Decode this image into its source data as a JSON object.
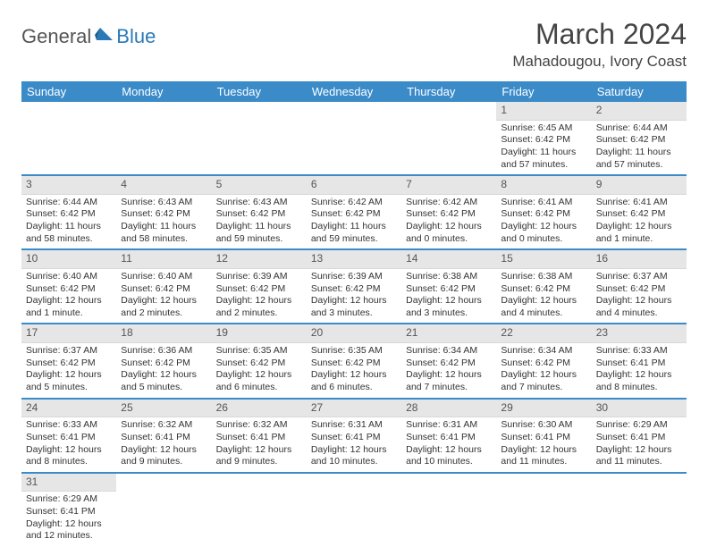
{
  "logo": {
    "general": "General",
    "blue": "Blue"
  },
  "title": "March 2024",
  "location": "Mahadougou, Ivory Coast",
  "colors": {
    "headerBg": "#3b8bc9",
    "dayNumBg": "#e6e6e6"
  },
  "weekdays": [
    "Sunday",
    "Monday",
    "Tuesday",
    "Wednesday",
    "Thursday",
    "Friday",
    "Saturday"
  ],
  "weeks": [
    [
      null,
      null,
      null,
      null,
      null,
      {
        "n": "1",
        "sr": "Sunrise: 6:45 AM",
        "ss": "Sunset: 6:42 PM",
        "dl": "Daylight: 11 hours and 57 minutes."
      },
      {
        "n": "2",
        "sr": "Sunrise: 6:44 AM",
        "ss": "Sunset: 6:42 PM",
        "dl": "Daylight: 11 hours and 57 minutes."
      }
    ],
    [
      {
        "n": "3",
        "sr": "Sunrise: 6:44 AM",
        "ss": "Sunset: 6:42 PM",
        "dl": "Daylight: 11 hours and 58 minutes."
      },
      {
        "n": "4",
        "sr": "Sunrise: 6:43 AM",
        "ss": "Sunset: 6:42 PM",
        "dl": "Daylight: 11 hours and 58 minutes."
      },
      {
        "n": "5",
        "sr": "Sunrise: 6:43 AM",
        "ss": "Sunset: 6:42 PM",
        "dl": "Daylight: 11 hours and 59 minutes."
      },
      {
        "n": "6",
        "sr": "Sunrise: 6:42 AM",
        "ss": "Sunset: 6:42 PM",
        "dl": "Daylight: 11 hours and 59 minutes."
      },
      {
        "n": "7",
        "sr": "Sunrise: 6:42 AM",
        "ss": "Sunset: 6:42 PM",
        "dl": "Daylight: 12 hours and 0 minutes."
      },
      {
        "n": "8",
        "sr": "Sunrise: 6:41 AM",
        "ss": "Sunset: 6:42 PM",
        "dl": "Daylight: 12 hours and 0 minutes."
      },
      {
        "n": "9",
        "sr": "Sunrise: 6:41 AM",
        "ss": "Sunset: 6:42 PM",
        "dl": "Daylight: 12 hours and 1 minute."
      }
    ],
    [
      {
        "n": "10",
        "sr": "Sunrise: 6:40 AM",
        "ss": "Sunset: 6:42 PM",
        "dl": "Daylight: 12 hours and 1 minute."
      },
      {
        "n": "11",
        "sr": "Sunrise: 6:40 AM",
        "ss": "Sunset: 6:42 PM",
        "dl": "Daylight: 12 hours and 2 minutes."
      },
      {
        "n": "12",
        "sr": "Sunrise: 6:39 AM",
        "ss": "Sunset: 6:42 PM",
        "dl": "Daylight: 12 hours and 2 minutes."
      },
      {
        "n": "13",
        "sr": "Sunrise: 6:39 AM",
        "ss": "Sunset: 6:42 PM",
        "dl": "Daylight: 12 hours and 3 minutes."
      },
      {
        "n": "14",
        "sr": "Sunrise: 6:38 AM",
        "ss": "Sunset: 6:42 PM",
        "dl": "Daylight: 12 hours and 3 minutes."
      },
      {
        "n": "15",
        "sr": "Sunrise: 6:38 AM",
        "ss": "Sunset: 6:42 PM",
        "dl": "Daylight: 12 hours and 4 minutes."
      },
      {
        "n": "16",
        "sr": "Sunrise: 6:37 AM",
        "ss": "Sunset: 6:42 PM",
        "dl": "Daylight: 12 hours and 4 minutes."
      }
    ],
    [
      {
        "n": "17",
        "sr": "Sunrise: 6:37 AM",
        "ss": "Sunset: 6:42 PM",
        "dl": "Daylight: 12 hours and 5 minutes."
      },
      {
        "n": "18",
        "sr": "Sunrise: 6:36 AM",
        "ss": "Sunset: 6:42 PM",
        "dl": "Daylight: 12 hours and 5 minutes."
      },
      {
        "n": "19",
        "sr": "Sunrise: 6:35 AM",
        "ss": "Sunset: 6:42 PM",
        "dl": "Daylight: 12 hours and 6 minutes."
      },
      {
        "n": "20",
        "sr": "Sunrise: 6:35 AM",
        "ss": "Sunset: 6:42 PM",
        "dl": "Daylight: 12 hours and 6 minutes."
      },
      {
        "n": "21",
        "sr": "Sunrise: 6:34 AM",
        "ss": "Sunset: 6:42 PM",
        "dl": "Daylight: 12 hours and 7 minutes."
      },
      {
        "n": "22",
        "sr": "Sunrise: 6:34 AM",
        "ss": "Sunset: 6:42 PM",
        "dl": "Daylight: 12 hours and 7 minutes."
      },
      {
        "n": "23",
        "sr": "Sunrise: 6:33 AM",
        "ss": "Sunset: 6:41 PM",
        "dl": "Daylight: 12 hours and 8 minutes."
      }
    ],
    [
      {
        "n": "24",
        "sr": "Sunrise: 6:33 AM",
        "ss": "Sunset: 6:41 PM",
        "dl": "Daylight: 12 hours and 8 minutes."
      },
      {
        "n": "25",
        "sr": "Sunrise: 6:32 AM",
        "ss": "Sunset: 6:41 PM",
        "dl": "Daylight: 12 hours and 9 minutes."
      },
      {
        "n": "26",
        "sr": "Sunrise: 6:32 AM",
        "ss": "Sunset: 6:41 PM",
        "dl": "Daylight: 12 hours and 9 minutes."
      },
      {
        "n": "27",
        "sr": "Sunrise: 6:31 AM",
        "ss": "Sunset: 6:41 PM",
        "dl": "Daylight: 12 hours and 10 minutes."
      },
      {
        "n": "28",
        "sr": "Sunrise: 6:31 AM",
        "ss": "Sunset: 6:41 PM",
        "dl": "Daylight: 12 hours and 10 minutes."
      },
      {
        "n": "29",
        "sr": "Sunrise: 6:30 AM",
        "ss": "Sunset: 6:41 PM",
        "dl": "Daylight: 12 hours and 11 minutes."
      },
      {
        "n": "30",
        "sr": "Sunrise: 6:29 AM",
        "ss": "Sunset: 6:41 PM",
        "dl": "Daylight: 12 hours and 11 minutes."
      }
    ],
    [
      {
        "n": "31",
        "sr": "Sunrise: 6:29 AM",
        "ss": "Sunset: 6:41 PM",
        "dl": "Daylight: 12 hours and 12 minutes."
      },
      null,
      null,
      null,
      null,
      null,
      null
    ]
  ]
}
